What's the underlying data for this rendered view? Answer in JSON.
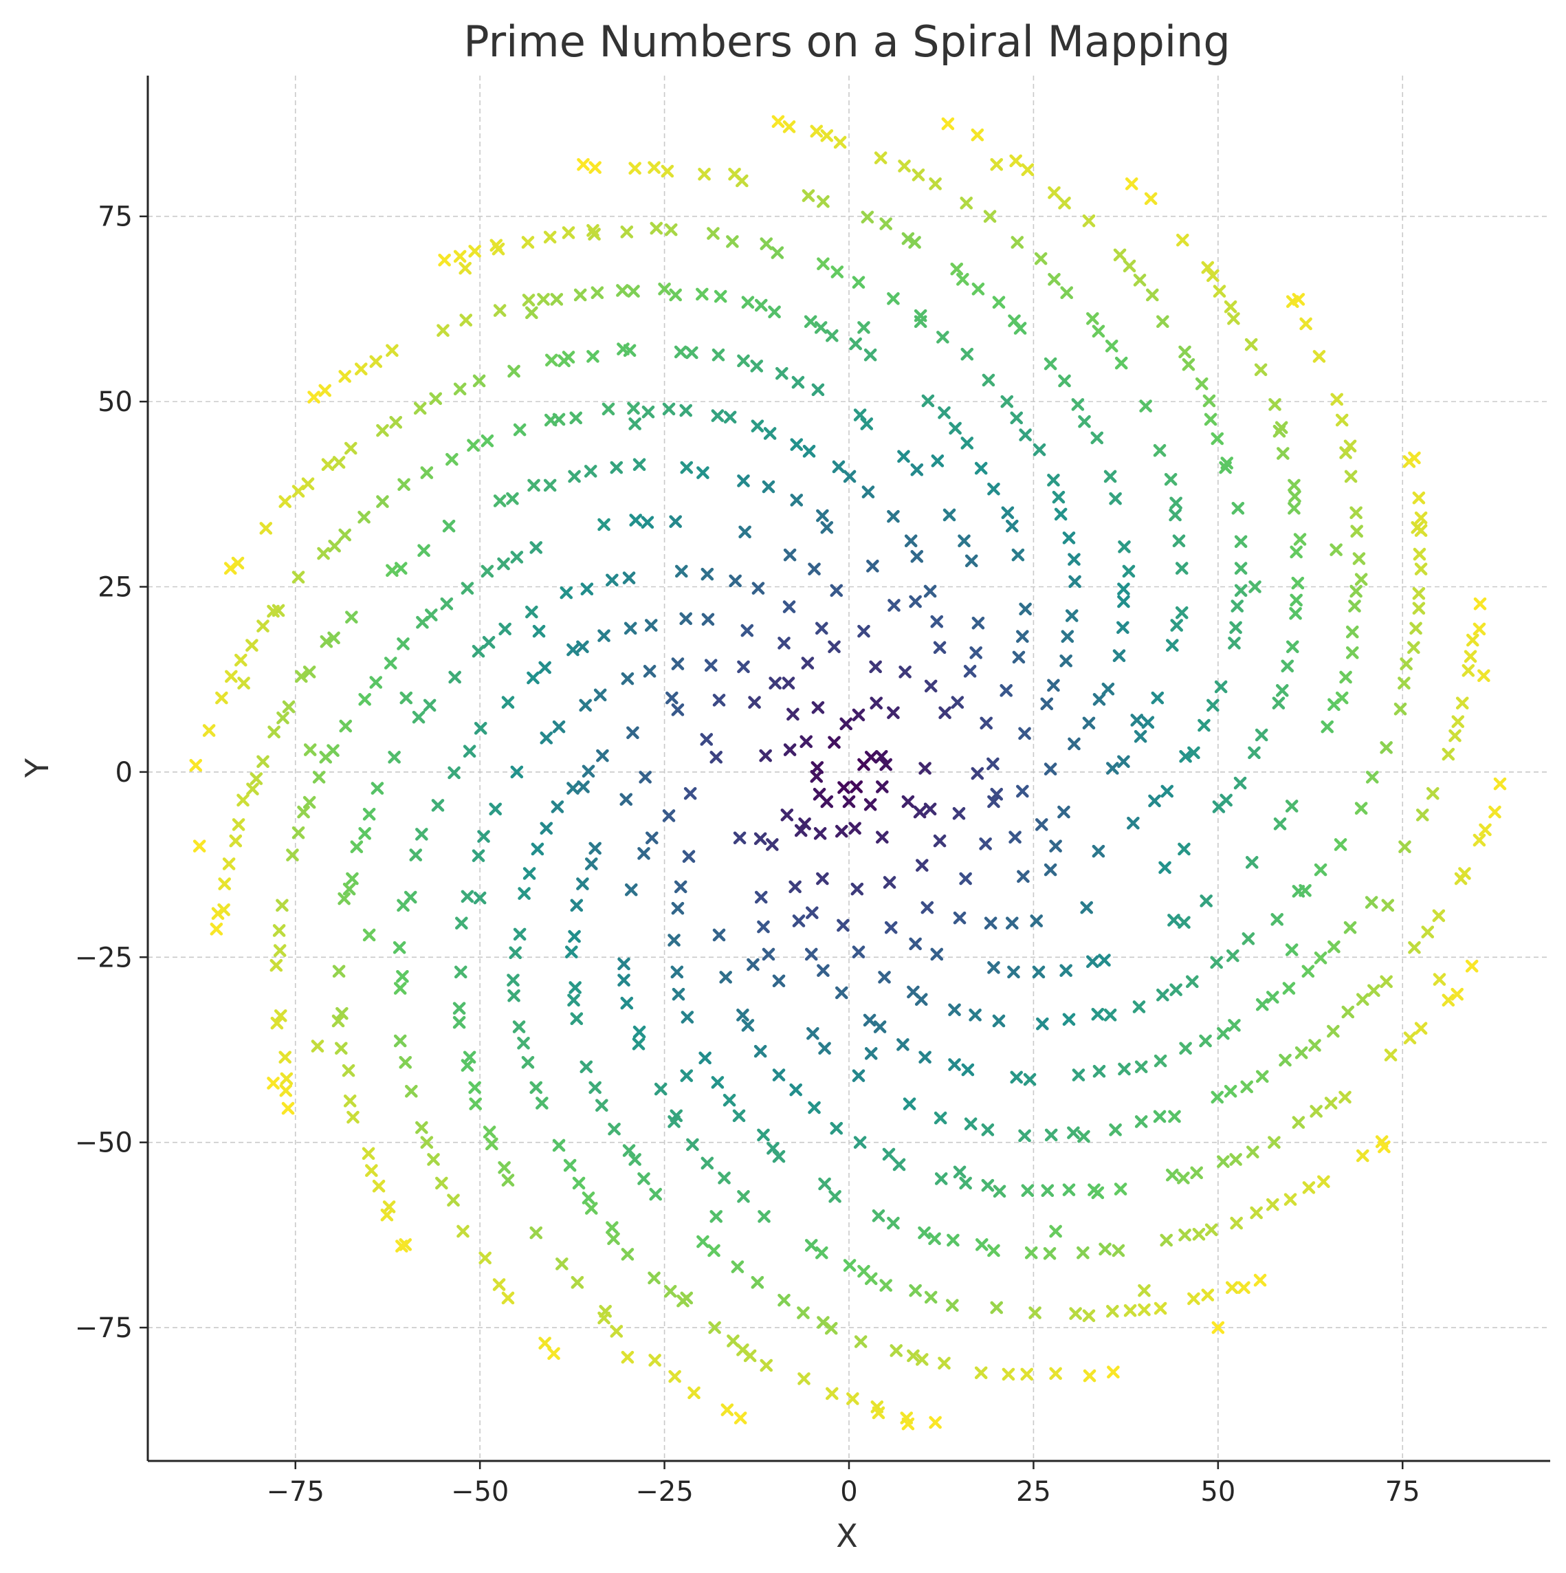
{
  "chart_data": {
    "type": "scatter",
    "title": "Prime Numbers on a Spiral Mapping",
    "xlabel": "X",
    "ylabel": "Y",
    "xlim": [
      -95,
      95
    ],
    "ylim": [
      -93,
      94
    ],
    "xticks": [
      -75,
      -50,
      -25,
      0,
      25,
      50,
      75
    ],
    "yticks": [
      -75,
      -50,
      -25,
      0,
      25,
      50,
      75
    ],
    "xtick_labels": [
      "−75",
      "−50",
      "−25",
      "0",
      "25",
      "50",
      "75"
    ],
    "ytick_labels": [
      "−75",
      "−50",
      "−25",
      "0",
      "25",
      "50",
      "75"
    ],
    "grid": true,
    "marker": "x",
    "colormap": "viridis",
    "colormap_stops": [
      "#440154",
      "#3b528b",
      "#21918c",
      "#5ec962",
      "#fde725"
    ],
    "color_by": "distance_from_origin",
    "spiral_arms": 22,
    "approx_point_count": 1100,
    "r_range": [
      0,
      89
    ],
    "series": [
      {
        "points": [
          [
            0,
            -4
          ],
          [
            1,
            -2
          ],
          [
            3,
            2
          ],
          [
            -3,
            -4
          ],
          [
            -4,
            -3
          ],
          [
            5,
            1
          ],
          [
            -2,
            4
          ],
          [
            2,
            1
          ],
          [
            -8,
            3
          ],
          [
            -6,
            -7
          ],
          [
            8,
            -4
          ],
          [
            6,
            8
          ],
          [
            -1,
            -8
          ],
          [
            -10,
            12
          ],
          [
            -12,
            -9
          ],
          [
            11,
            -5
          ],
          [
            13,
            8
          ],
          [
            2,
            19
          ],
          [
            -18,
            2
          ],
          [
            -5,
            -19
          ],
          [
            20,
            -3
          ],
          [
            9,
            23
          ],
          [
            -24,
            10
          ],
          [
            -13,
            -26
          ],
          [
            28,
            -10
          ],
          [
            -3,
            33
          ],
          [
            -36,
            -2
          ],
          [
            3,
            -38
          ],
          [
            39,
            7
          ],
          [
            12,
            42
          ],
          [
            -42,
            19
          ],
          [
            -22,
            -41
          ],
          [
            44,
            -20
          ],
          [
            -29,
            47
          ],
          [
            -50,
            -17
          ],
          [
            15,
            -54
          ],
          [
            55,
            25
          ],
          [
            2,
            60
          ],
          [
            -60,
            10
          ],
          [
            -18,
            -60
          ],
          [
            60,
            -24
          ],
          [
            -38,
            56
          ],
          [
            -65,
            -22
          ],
          [
            28,
            -62
          ],
          [
            66,
            30
          ],
          [
            8,
            72
          ],
          [
            -73,
            3
          ],
          [
            -22,
            -71
          ],
          [
            73,
            -18
          ],
          [
            -43,
            62
          ],
          [
            -72,
            -37
          ],
          [
            40,
            -70
          ],
          [
            77,
            33
          ],
          [
            20,
            82
          ],
          [
            -82,
            12
          ],
          [
            -30,
            -79
          ],
          [
            80,
            -28
          ],
          [
            -52,
            68
          ],
          [
            -78,
            -42
          ],
          [
            50,
            -75
          ],
          [
            86,
            13
          ],
          [
            -36,
            82
          ],
          [
            -88,
            -10
          ],
          [
            8,
            -88
          ]
        ]
      }
    ]
  }
}
